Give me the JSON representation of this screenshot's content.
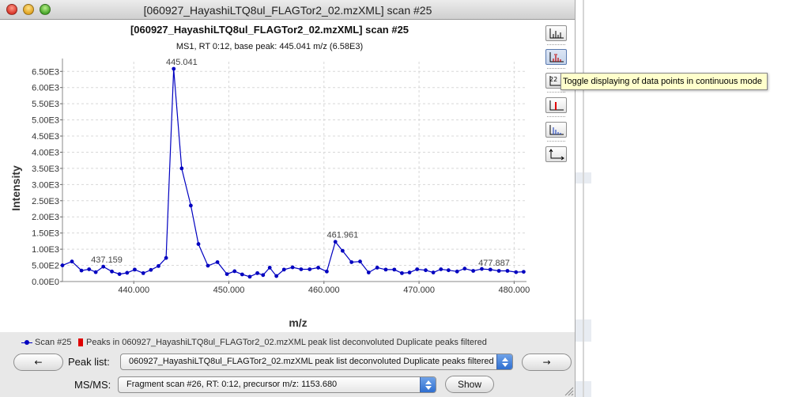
{
  "window": {
    "title": "[060927_HayashiLTQ8ul_FLAGTor2_02.mzXML] scan #25"
  },
  "chart_data": {
    "type": "line",
    "title": "[060927_HayashiLTQ8ul_FLAGTor2_02.mzXML] scan #25",
    "subtitle": "MS1, RT 0:12, base peak: 445.041 m/z (6.58E3)",
    "xlabel": "m/z",
    "ylabel": "Intensity",
    "xlim": [
      432.5,
      481.3
    ],
    "ylim": [
      0,
      6800
    ],
    "grid": true,
    "x_ticks": [
      440,
      450,
      460,
      470,
      480
    ],
    "x_tick_labels": [
      "440.000",
      "450.000",
      "460.000",
      "470.000",
      "480.000"
    ],
    "y_ticks": [
      0,
      500,
      1000,
      1500,
      2000,
      2500,
      3000,
      3500,
      4000,
      4500,
      5000,
      5500,
      6000,
      6500
    ],
    "y_tick_labels": [
      "0.00E0",
      "5.00E2",
      "1.00E3",
      "1.50E3",
      "2.00E3",
      "2.50E3",
      "3.00E3",
      "3.50E3",
      "4.00E3",
      "4.50E3",
      "5.00E3",
      "5.50E3",
      "6.00E3",
      "6.50E3"
    ],
    "series": [
      {
        "name": "Scan #25",
        "color": "#0000c0",
        "x": [
          432.5,
          433.5,
          434.5,
          435.3,
          436.0,
          436.8,
          437.7,
          438.5,
          439.3,
          440.1,
          441.0,
          441.8,
          442.6,
          443.4,
          444.2,
          445.04,
          446.0,
          446.8,
          447.8,
          448.8,
          449.8,
          450.6,
          451.4,
          452.2,
          453.0,
          453.6,
          454.3,
          455.0,
          455.8,
          456.7,
          457.6,
          458.5,
          459.4,
          460.3,
          461.2,
          461.96,
          462.9,
          463.8,
          464.7,
          465.6,
          466.5,
          467.4,
          468.2,
          469.0,
          469.8,
          470.7,
          471.5,
          472.3,
          473.1,
          474.0,
          474.8,
          475.7,
          476.6,
          477.5,
          478.4,
          479.3,
          480.2,
          481.0
        ],
        "y": [
          500,
          620,
          340,
          380,
          290,
          460,
          310,
          230,
          270,
          370,
          260,
          360,
          480,
          730,
          6580,
          3500,
          2350,
          1160,
          490,
          600,
          230,
          320,
          220,
          150,
          260,
          200,
          430,
          170,
          370,
          440,
          380,
          380,
          430,
          310,
          1230,
          950,
          600,
          620,
          280,
          430,
          370,
          370,
          260,
          280,
          380,
          350,
          280,
          380,
          350,
          310,
          400,
          330,
          390,
          370,
          330,
          330,
          290,
          300
        ]
      }
    ],
    "peak_list": {
      "name": "Peaks in 060927_HayashiLTQ8ul_FLAGTor2_02.mzXML peak list deconvoluted Duplicate peaks filtered",
      "color": "#e00000"
    },
    "annotations": [
      {
        "text": "445.041",
        "x": 445.041,
        "y": 6580
      },
      {
        "text": "437.159",
        "x": 437.159,
        "y": 460
      },
      {
        "text": "461.961",
        "x": 461.961,
        "y": 1230
      },
      {
        "text": "477.887",
        "x": 477.887,
        "y": 370
      }
    ],
    "legend_position": "bottom"
  },
  "toolbar": {
    "icons": [
      "centroid-icon",
      "peak-labels-icon",
      "data-points-icon",
      "picked-peaks-icon",
      "isotope-peaks-icon",
      "axes-icon"
    ],
    "tooltip": "Toggle displaying of data points  in continuous mode",
    "data_points_icon_text": "22"
  },
  "controls": {
    "prev_label": "←",
    "next_label": "→",
    "peak_list_label": "Peak list:",
    "peak_list_value": "060927_HayashiLTQ8ul_FLAGTor2_02.mzXML peak list deconvoluted Duplicate peaks filtered",
    "msms_label": "MS/MS:",
    "fragment_value": "Fragment scan #26, RT: 0:12, precursor m/z: 1153.680",
    "show_label": "Show"
  }
}
